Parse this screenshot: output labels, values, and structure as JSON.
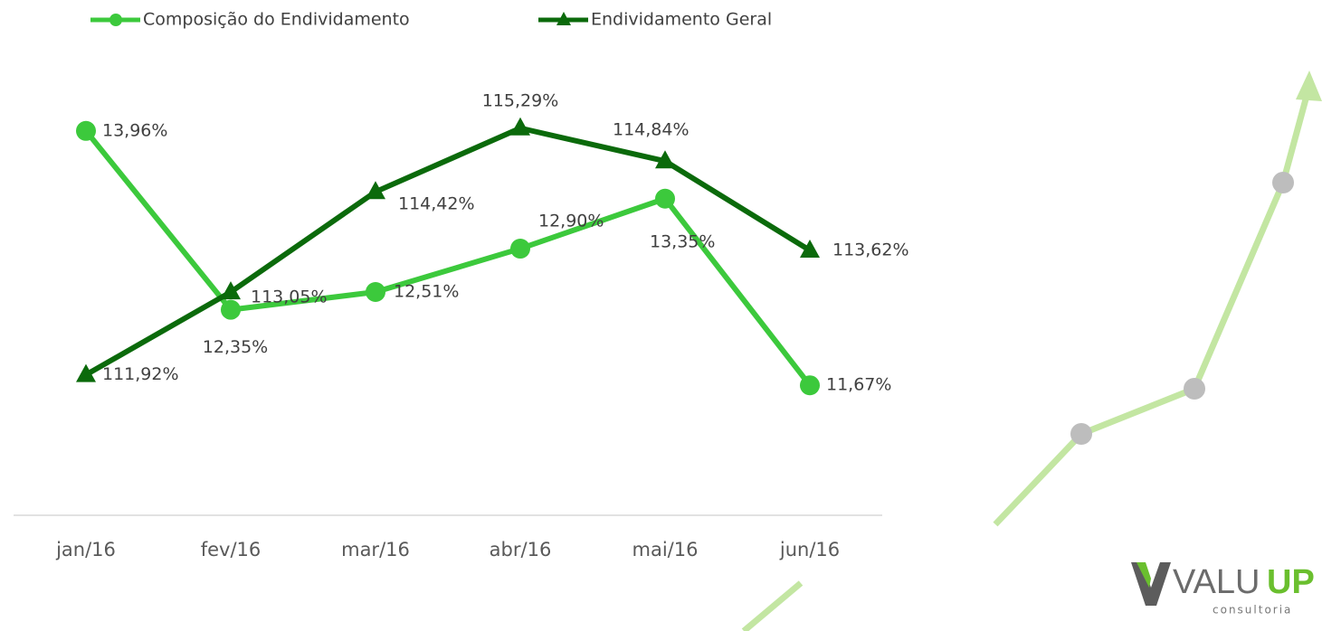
{
  "chart_data": {
    "type": "line",
    "categories": [
      "jan/16",
      "fev/16",
      "mar/16",
      "abr/16",
      "mai/16",
      "jun/16"
    ],
    "series": [
      {
        "name": "Composição do Endividamento",
        "color": "#3cc93c",
        "marker": "circle",
        "values": [
          13.96,
          12.35,
          12.51,
          12.9,
          13.35,
          11.67
        ],
        "value_labels": [
          "13,96%",
          "12,35%",
          "12,51%",
          "12,90%",
          "13,35%",
          "11,67%"
        ]
      },
      {
        "name": "Endividamento Geral",
        "color": "#0b6a0b",
        "marker": "triangle",
        "axis": "y2",
        "values": [
          111.92,
          113.05,
          114.42,
          115.29,
          114.84,
          113.62
        ],
        "value_labels": [
          "111,92%",
          "113,05%",
          "114,42%",
          "115,29%",
          "114,84%",
          "113,62%"
        ]
      }
    ],
    "ylim": [
      10.5,
      14.65
    ],
    "y2lim": [
      110,
      116.3
    ],
    "grid": false,
    "legend": "top"
  },
  "logo": {
    "parts": [
      "VALU",
      "UP"
    ],
    "tagline": "consultoria"
  }
}
